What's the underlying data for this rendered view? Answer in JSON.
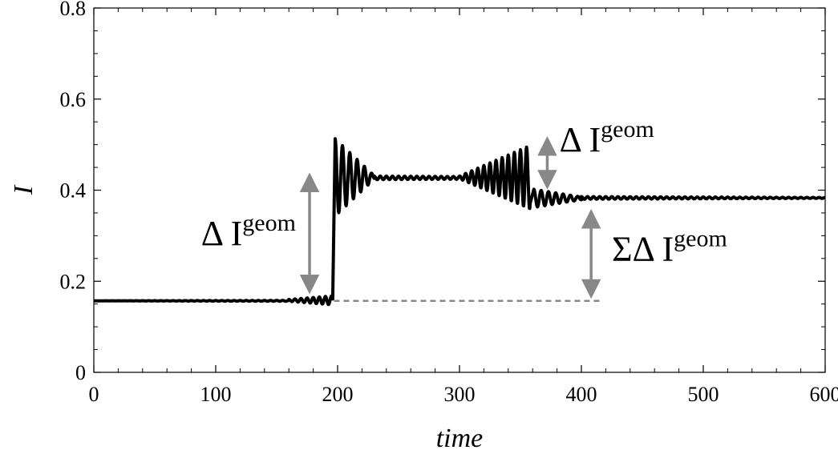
{
  "chart_data": {
    "type": "line",
    "title": "",
    "xlabel": "time",
    "ylabel": "I",
    "xlim": [
      0,
      600
    ],
    "ylim": [
      0,
      0.8
    ],
    "x_ticks": [
      0,
      100,
      200,
      300,
      400,
      500,
      600
    ],
    "x_tick_labels": [
      "0",
      "100",
      "200",
      "300",
      "400",
      "500",
      "600"
    ],
    "y_ticks": [
      0,
      0.2,
      0.4,
      0.6,
      0.8
    ],
    "y_tick_labels": [
      "0",
      "0.2",
      "0.4",
      "0.6",
      "0.8"
    ],
    "grid": false,
    "legend": "none",
    "series": [
      {
        "color": "#000000",
        "segments": [
          {
            "x_start": 0,
            "x_end": 160,
            "base": 0.157,
            "amp_start": 0.0,
            "amp_end": 0.001,
            "period": 5
          },
          {
            "x_start": 160,
            "x_end": 196,
            "base": 0.158,
            "amp_start": 0.002,
            "amp_end": 0.01,
            "period": 5
          },
          {
            "x_start": 198,
            "x_end": 230,
            "base": 0.428,
            "amp_start": 0.085,
            "amp_end": 0.004,
            "period": 6
          },
          {
            "x_start": 230,
            "x_end": 300,
            "base": 0.427,
            "amp_start": 0.004,
            "amp_end": 0.003,
            "period": 5
          },
          {
            "x_start": 300,
            "x_end": 358,
            "base": 0.428,
            "amp_start": 0.003,
            "amp_end": 0.07,
            "period": 5
          },
          {
            "x_start": 361,
            "x_end": 400,
            "base": 0.382,
            "amp_start": 0.02,
            "amp_end": 0.003,
            "period": 6
          },
          {
            "x_start": 400,
            "x_end": 600,
            "base": 0.383,
            "amp_start": 0.003,
            "amp_end": 0.001,
            "period": 5
          }
        ]
      }
    ],
    "reference_line": {
      "y": 0.157,
      "x_start": 197,
      "x_end": 418,
      "color": "#888888",
      "style": "dashed"
    },
    "annotations": [
      {
        "text": "Δ I",
        "sup": "geom",
        "arrow_x": 177,
        "arrow_y": [
          0.18,
          0.43
        ],
        "label_x": 88,
        "label_y": 0.28,
        "color": "#888888"
      },
      {
        "text": "Δ I",
        "sup": "geom",
        "arrow_x": 372,
        "arrow_y": [
          0.41,
          0.51
        ],
        "label_x": 382,
        "label_y": 0.485,
        "color": "#888888"
      },
      {
        "text": "ΣΔ I",
        "sup": "geom",
        "arrow_x": 408,
        "arrow_y": [
          0.17,
          0.35
        ],
        "label_x": 425,
        "label_y": 0.245,
        "color": "#888888"
      }
    ]
  }
}
